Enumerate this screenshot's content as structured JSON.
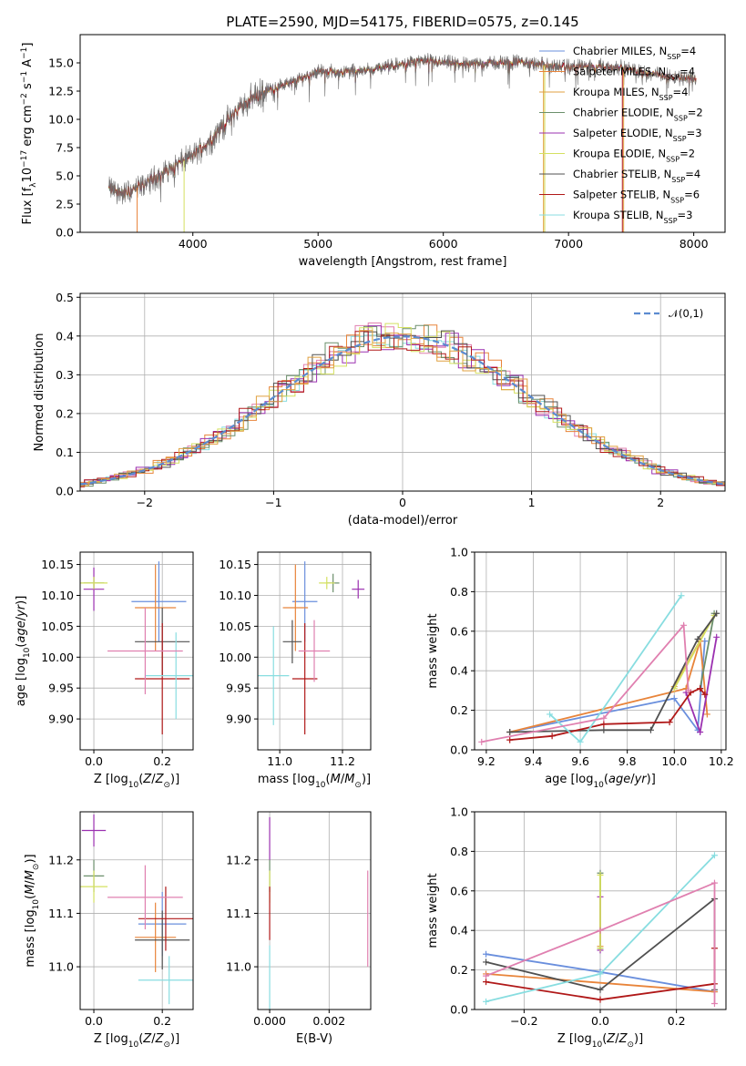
{
  "title": "PLATE=2590, MJD=54175, FIBERID=0575, z=0.145",
  "colors": {
    "Chabrier MILES": "#6a8fdd",
    "Salpeter MILES": "#e8843a",
    "Kroupa MILES": "#e0a040",
    "Chabrier ELODIE": "#6b8f6b",
    "Salpeter ELODIE": "#9b30b0",
    "Kroupa ELODIE": "#d4e060",
    "Chabrier STELIB": "#505050",
    "Salpeter STELIB": "#b01818",
    "Kroupa STELIB": "#88dde0",
    "pink": "#e080b0"
  },
  "legend": [
    {
      "name": "Chabrier MILES",
      "nssp": "4"
    },
    {
      "name": "Salpeter MILES",
      "nssp": "4"
    },
    {
      "name": "Kroupa MILES",
      "nssp": "4"
    },
    {
      "name": "Chabrier ELODIE",
      "nssp": "2"
    },
    {
      "name": "Salpeter ELODIE",
      "nssp": "3"
    },
    {
      "name": "Kroupa ELODIE",
      "nssp": "2"
    },
    {
      "name": "Chabrier STELIB",
      "nssp": "4"
    },
    {
      "name": "Salpeter STELIB",
      "nssp": "6"
    },
    {
      "name": "Kroupa STELIB",
      "nssp": "3"
    }
  ],
  "chart_data": [
    {
      "id": "spectrum",
      "type": "line",
      "xlabel": "wavelength [Angstrom, rest frame]",
      "ylabel": "Flux [f_λ10^-17 erg cm^-2 s^-1 A^-1]",
      "xlim": [
        3100,
        8250
      ],
      "ylim": [
        0,
        17.5
      ],
      "xticks": [
        4000,
        5000,
        6000,
        7000,
        8000
      ],
      "yticks": [
        0.0,
        2.5,
        5.0,
        7.5,
        10.0,
        12.5,
        15.0
      ],
      "grid": false,
      "legend_position": "top-right",
      "data_range": [
        3330,
        8020
      ],
      "continuum": [
        [
          3330,
          3.9
        ],
        [
          3450,
          3.4
        ],
        [
          3600,
          4.2
        ],
        [
          3750,
          5.2
        ],
        [
          3900,
          6.2
        ],
        [
          4000,
          6.8
        ],
        [
          4150,
          8.2
        ],
        [
          4300,
          10.2
        ],
        [
          4450,
          11.8
        ],
        [
          4600,
          12.6
        ],
        [
          4800,
          13.3
        ],
        [
          5000,
          14.3
        ],
        [
          5200,
          14.2
        ],
        [
          5400,
          14.4
        ],
        [
          5600,
          14.7
        ],
        [
          5800,
          15.2
        ],
        [
          6000,
          15.0
        ],
        [
          6200,
          14.9
        ],
        [
          6400,
          15.0
        ],
        [
          6600,
          15.1
        ],
        [
          6800,
          14.8
        ],
        [
          7000,
          14.6
        ],
        [
          7200,
          14.7
        ],
        [
          7400,
          14.6
        ],
        [
          7600,
          14.2
        ],
        [
          7800,
          13.8
        ],
        [
          8020,
          13.6
        ]
      ]
    },
    {
      "id": "residuals",
      "type": "histogram",
      "xlabel": "(data-model)/error",
      "ylabel": "Normed distribution",
      "xlim": [
        -2.5,
        2.5
      ],
      "ylim": [
        0,
        0.51
      ],
      "xticks": [
        -2,
        -1,
        0,
        1,
        2
      ],
      "yticks": [
        0.0,
        0.1,
        0.2,
        0.3,
        0.4,
        0.5
      ],
      "grid": true,
      "legend_position": "top-right",
      "legend": "𝒩(0,1)",
      "bin_width": 0.1
    },
    {
      "id": "age-vs-Z",
      "type": "errorbar",
      "xlabel": "Z [log10(Z/Z⊙)]",
      "ylabel": "age [log10(age/yr)]",
      "xlim": [
        -0.04,
        0.29
      ],
      "ylim": [
        9.85,
        10.17
      ],
      "xticks": [
        0.0,
        0.2
      ],
      "yticks": [
        9.9,
        9.95,
        10.0,
        10.05,
        10.1,
        10.15
      ],
      "points": [
        {
          "series": "Chabrier MILES",
          "x": 0.19,
          "y": 10.09,
          "xerr": 0.08,
          "yerr": 0.065
        },
        {
          "series": "Salpeter MILES",
          "x": 0.18,
          "y": 10.08,
          "xerr": 0.06,
          "yerr": 0.07
        },
        {
          "series": "Chabrier ELODIE",
          "x": 0.0,
          "y": 10.12,
          "xerr": 0.03,
          "yerr": 0.01
        },
        {
          "series": "Salpeter ELODIE",
          "x": 0.0,
          "y": 10.11,
          "xerr": 0.03,
          "yerr": 0.035
        },
        {
          "series": "Kroupa ELODIE",
          "x": 0.0,
          "y": 10.12,
          "xerr": 0.04,
          "yerr": 0.01
        },
        {
          "series": "Chabrier STELIB",
          "x": 0.2,
          "y": 10.025,
          "xerr": 0.08,
          "yerr": 0.055
        },
        {
          "series": "Salpeter STELIB",
          "x": 0.2,
          "y": 9.965,
          "xerr": 0.08,
          "yerr": 0.09
        },
        {
          "series": "Kroupa STELIB",
          "x": 0.24,
          "y": 9.97,
          "xerr": 0.09,
          "yerr": 0.07
        },
        {
          "series": "pink",
          "x": 0.15,
          "y": 10.01,
          "xerr": 0.11,
          "yerr": 0.07
        }
      ]
    },
    {
      "id": "age-vs-mass",
      "type": "errorbar",
      "xlabel": "mass [log10(M/M⊙)]",
      "ylabel": "",
      "xlim": [
        10.93,
        11.29
      ],
      "ylim": [
        9.85,
        10.17
      ],
      "xticks": [
        11.0,
        11.2
      ],
      "yticks": [
        9.9,
        9.95,
        10.0,
        10.05,
        10.1,
        10.15
      ],
      "points": [
        {
          "series": "Chabrier MILES",
          "x": 11.08,
          "y": 10.09,
          "xerr": 0.04,
          "yerr": 0.065
        },
        {
          "series": "Salpeter MILES",
          "x": 11.05,
          "y": 10.08,
          "xerr": 0.04,
          "yerr": 0.07
        },
        {
          "series": "Chabrier ELODIE",
          "x": 11.17,
          "y": 10.12,
          "xerr": 0.02,
          "yerr": 0.015
        },
        {
          "series": "Salpeter ELODIE",
          "x": 11.25,
          "y": 10.11,
          "xerr": 0.02,
          "yerr": 0.015
        },
        {
          "series": "Kroupa ELODIE",
          "x": 11.15,
          "y": 10.12,
          "xerr": 0.025,
          "yerr": 0.01
        },
        {
          "series": "Chabrier STELIB",
          "x": 11.04,
          "y": 10.025,
          "xerr": 0.03,
          "yerr": 0.035
        },
        {
          "series": "Salpeter STELIB",
          "x": 11.08,
          "y": 9.965,
          "xerr": 0.04,
          "yerr": 0.09
        },
        {
          "series": "Kroupa STELIB",
          "x": 10.98,
          "y": 9.97,
          "xerr": 0.05,
          "yerr": 0.08
        },
        {
          "series": "pink",
          "x": 11.11,
          "y": 10.01,
          "xerr": 0.05,
          "yerr": 0.05
        }
      ]
    },
    {
      "id": "mass-weight-vs-age",
      "type": "line",
      "xlabel": "age [log10(age/yr)]",
      "ylabel": "mass weight",
      "xlim": [
        9.15,
        10.22
      ],
      "ylim": [
        0.0,
        1.0
      ],
      "xticks": [
        9.2,
        9.4,
        9.6,
        9.8,
        10.0,
        10.2
      ],
      "yticks": [
        0.0,
        0.2,
        0.4,
        0.6,
        0.8,
        1.0
      ],
      "series": [
        {
          "name": "Chabrier MILES",
          "x": [
            9.3,
            10.0,
            10.1,
            10.13
          ],
          "y": [
            0.09,
            0.26,
            0.1,
            0.55
          ]
        },
        {
          "name": "Salpeter MILES",
          "x": [
            9.3,
            10.05,
            10.11,
            10.14
          ],
          "y": [
            0.09,
            0.31,
            0.55,
            0.18
          ]
        },
        {
          "name": "Kroupa MILES",
          "x": [
            10.0,
            10.17
          ],
          "y": [
            0.32,
            0.68
          ]
        },
        {
          "name": "Chabrier ELODIE",
          "x": [
            10.11,
            10.17
          ],
          "y": [
            0.31,
            0.69
          ]
        },
        {
          "name": "Salpeter ELODIE",
          "x": [
            10.05,
            10.11,
            10.18
          ],
          "y": [
            0.29,
            0.09,
            0.57
          ]
        },
        {
          "name": "Kroupa ELODIE",
          "x": [
            10.0,
            10.17
          ],
          "y": [
            0.31,
            0.68
          ]
        },
        {
          "name": "Chabrier STELIB",
          "x": [
            9.3,
            9.7,
            9.9,
            10.1,
            10.18
          ],
          "y": [
            0.09,
            0.1,
            0.1,
            0.56,
            0.69
          ]
        },
        {
          "name": "Salpeter STELIB",
          "x": [
            9.3,
            9.48,
            9.7,
            9.98,
            10.07,
            10.11,
            10.13
          ],
          "y": [
            0.05,
            0.07,
            0.13,
            0.14,
            0.29,
            0.31,
            0.28
          ]
        },
        {
          "name": "Kroupa STELIB",
          "x": [
            9.47,
            9.6,
            10.03
          ],
          "y": [
            0.18,
            0.04,
            0.78
          ]
        },
        {
          "name": "pink",
          "x": [
            9.18,
            9.7,
            10.04,
            10.06
          ],
          "y": [
            0.04,
            0.16,
            0.63,
            0.3
          ]
        }
      ]
    },
    {
      "id": "mass-vs-Z",
      "type": "errorbar",
      "xlabel": "Z [log10(Z/Z⊙)]",
      "ylabel": "mass [log10(M/M⊙)]",
      "xlim": [
        -0.04,
        0.29
      ],
      "ylim": [
        10.92,
        11.29
      ],
      "xticks": [
        0.0,
        0.2
      ],
      "yticks": [
        11.0,
        11.1,
        11.2
      ],
      "points": [
        {
          "series": "Chabrier MILES",
          "x": 0.2,
          "y": 11.08,
          "xerr": 0.07,
          "yerr": 0.06
        },
        {
          "series": "Salpeter MILES",
          "x": 0.18,
          "y": 11.055,
          "xerr": 0.06,
          "yerr": 0.065
        },
        {
          "series": "Chabrier ELODIE",
          "x": 0.0,
          "y": 11.17,
          "xerr": 0.03,
          "yerr": 0.03
        },
        {
          "series": "Salpeter ELODIE",
          "x": 0.0,
          "y": 11.255,
          "xerr": 0.035,
          "yerr": 0.03
        },
        {
          "series": "Kroupa ELODIE",
          "x": 0.0,
          "y": 11.15,
          "xerr": 0.04,
          "yerr": 0.03
        },
        {
          "series": "Chabrier STELIB",
          "x": 0.2,
          "y": 11.05,
          "xerr": 0.08,
          "yerr": 0.055
        },
        {
          "series": "Salpeter STELIB",
          "x": 0.21,
          "y": 11.09,
          "xerr": 0.08,
          "yerr": 0.06
        },
        {
          "series": "Kroupa STELIB",
          "x": 0.22,
          "y": 10.975,
          "xerr": 0.09,
          "yerr": 0.045
        },
        {
          "series": "pink",
          "x": 0.15,
          "y": 11.13,
          "xerr": 0.11,
          "yerr": 0.06
        }
      ]
    },
    {
      "id": "mass-vs-EBV",
      "type": "errorbar",
      "xlabel": "E(B-V)",
      "ylabel": "",
      "xlim": [
        -0.0004,
        0.0034
      ],
      "ylim": [
        10.92,
        11.29
      ],
      "xticks": [
        0.0,
        0.002
      ],
      "yticks": [
        11.0,
        11.1,
        11.2
      ],
      "points": [
        {
          "series": "Salpeter ELODIE",
          "x": 0.0,
          "y": 11.24,
          "xerr": 0.0,
          "yerr": 0.04
        },
        {
          "series": "Chabrier ELODIE",
          "x": 0.0,
          "y": 11.17,
          "xerr": 0.0,
          "yerr": 0.03
        },
        {
          "series": "Kroupa ELODIE",
          "x": 0.0,
          "y": 11.15,
          "xerr": 0.0,
          "yerr": 0.03
        },
        {
          "series": "Salpeter STELIB",
          "x": 0.0,
          "y": 11.1,
          "xerr": 0.0,
          "yerr": 0.05
        },
        {
          "series": "Kroupa STELIB",
          "x": 0.0,
          "y": 10.98,
          "xerr": 0.0,
          "yerr": 0.06
        },
        {
          "series": "pink",
          "x": 0.0033,
          "y": 11.09,
          "xerr": 0.0,
          "yerr": 0.09
        }
      ]
    },
    {
      "id": "mass-weight-vs-Z",
      "type": "line",
      "xlabel": "Z [log10(Z/Z⊙)]",
      "ylabel": "mass weight",
      "xlim": [
        -0.33,
        0.33
      ],
      "ylim": [
        0.0,
        1.0
      ],
      "xticks": [
        -0.2,
        0.0,
        0.2
      ],
      "yticks": [
        0.0,
        0.2,
        0.4,
        0.6,
        0.8,
        1.0
      ],
      "series": [
        {
          "name": "Chabrier MILES",
          "x": [
            -0.3,
            0.0,
            0.3
          ],
          "y": [
            0.28,
            0.19,
            0.09
          ]
        },
        {
          "name": "Salpeter MILES",
          "x": [
            -0.3,
            0.3
          ],
          "y": [
            0.18,
            0.09
          ]
        },
        {
          "name": "Kroupa MILES",
          "x": [
            0.0,
            0.0
          ],
          "y": [
            0.32,
            0.68
          ]
        },
        {
          "name": "Chabrier ELODIE",
          "x": [
            0.0,
            0.0
          ],
          "y": [
            0.31,
            0.69
          ]
        },
        {
          "name": "Salpeter ELODIE",
          "x": [
            0.0,
            0.0
          ],
          "y": [
            0.3,
            0.57
          ]
        },
        {
          "name": "Kroupa ELODIE",
          "x": [
            0.0,
            0.0
          ],
          "y": [
            0.31,
            0.68
          ]
        },
        {
          "name": "Chabrier STELIB",
          "x": [
            -0.3,
            0.0,
            0.3,
            0.3
          ],
          "y": [
            0.24,
            0.1,
            0.56,
            0.1
          ]
        },
        {
          "name": "Salpeter STELIB",
          "x": [
            -0.3,
            0.0,
            0.3,
            0.3
          ],
          "y": [
            0.14,
            0.05,
            0.13,
            0.31
          ]
        },
        {
          "name": "Kroupa STELIB",
          "x": [
            -0.3,
            0.0,
            0.3
          ],
          "y": [
            0.04,
            0.18,
            0.78
          ]
        },
        {
          "name": "pink",
          "x": [
            -0.3,
            0.0,
            0.3,
            0.3
          ],
          "y": [
            0.17,
            0.4,
            0.64,
            0.03
          ]
        }
      ]
    }
  ]
}
